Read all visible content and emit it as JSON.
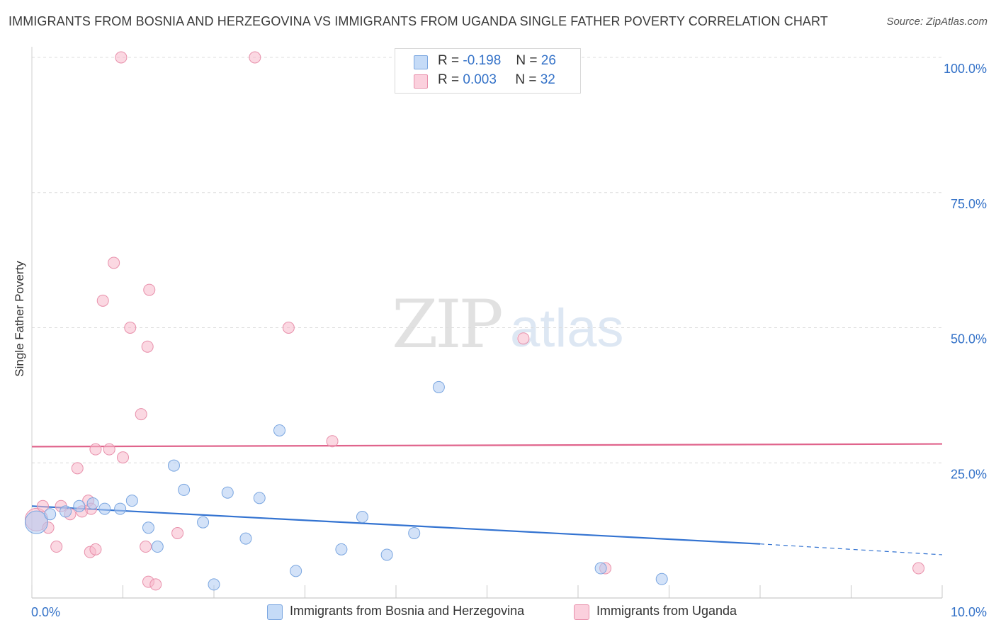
{
  "title": "IMMIGRANTS FROM BOSNIA AND HERZEGOVINA VS IMMIGRANTS FROM UGANDA SINGLE FATHER POVERTY CORRELATION CHART",
  "source": "Source: ZipAtlas.com",
  "watermark": {
    "zip": "ZIP",
    "atlas": "atlas"
  },
  "legend": {
    "rows": [
      {
        "r_label": "R =",
        "r_value": "-0.198",
        "n_label": "N =",
        "n_value": "26",
        "color": "#aecbf2"
      },
      {
        "r_label": "R =",
        "r_value": "0.003",
        "n_label": "N =",
        "n_value": "32",
        "color": "#f7b8cb"
      }
    ]
  },
  "chart_data": {
    "type": "scatter",
    "title": "IMMIGRANTS FROM BOSNIA AND HERZEGOVINA VS IMMIGRANTS FROM UGANDA SINGLE FATHER POVERTY CORRELATION CHART",
    "xlabel": "",
    "ylabel": "Single Father Poverty",
    "xlim": [
      0,
      10
    ],
    "ylim": [
      0,
      100
    ],
    "x_tick_labels": [
      "0.0%",
      "10.0%"
    ],
    "y_tick_labels": [
      "100.0%",
      "75.0%",
      "50.0%",
      "25.0%"
    ],
    "y_ticks": [
      100,
      75,
      50,
      25
    ],
    "series": [
      {
        "name": "Immigrants from Bosnia and Herzegovina",
        "color": "#aecbf2",
        "stroke": "#7aa6e0",
        "line_color": "#3373d1",
        "points": [
          {
            "x": 0.05,
            "y": 14.0,
            "big": true
          },
          {
            "x": 0.2,
            "y": 15.5
          },
          {
            "x": 0.37,
            "y": 16.0
          },
          {
            "x": 0.52,
            "y": 17.0
          },
          {
            "x": 0.67,
            "y": 17.5
          },
          {
            "x": 0.8,
            "y": 16.5
          },
          {
            "x": 0.97,
            "y": 16.5
          },
          {
            "x": 1.1,
            "y": 18.0
          },
          {
            "x": 1.28,
            "y": 13.0
          },
          {
            "x": 1.38,
            "y": 9.5
          },
          {
            "x": 1.56,
            "y": 24.5
          },
          {
            "x": 1.67,
            "y": 20.0
          },
          {
            "x": 1.88,
            "y": 14.0
          },
          {
            "x": 2.0,
            "y": 2.5
          },
          {
            "x": 2.15,
            "y": 19.5
          },
          {
            "x": 2.35,
            "y": 11.0
          },
          {
            "x": 2.5,
            "y": 18.5
          },
          {
            "x": 2.72,
            "y": 31.0
          },
          {
            "x": 2.9,
            "y": 5.0
          },
          {
            "x": 3.4,
            "y": 9.0
          },
          {
            "x": 3.63,
            "y": 15.0
          },
          {
            "x": 3.9,
            "y": 8.0
          },
          {
            "x": 4.2,
            "y": 12.0
          },
          {
            "x": 4.47,
            "y": 39.0
          },
          {
            "x": 6.25,
            "y": 5.5
          },
          {
            "x": 6.92,
            "y": 3.5
          }
        ],
        "trend": {
          "x0": 0.0,
          "y0": 17.0,
          "x1": 8.0,
          "y1": 10.0,
          "dash_x1": 10.0,
          "dash_y1": 8.0
        }
      },
      {
        "name": "Immigrants from Uganda",
        "color": "#f7b8cb",
        "stroke": "#e890ab",
        "line_color": "#e0648c",
        "points": [
          {
            "x": 0.05,
            "y": 14.5,
            "big": true
          },
          {
            "x": 0.12,
            "y": 17.0
          },
          {
            "x": 0.18,
            "y": 13.0
          },
          {
            "x": 0.27,
            "y": 9.5
          },
          {
            "x": 0.32,
            "y": 17.0
          },
          {
            "x": 0.42,
            "y": 15.5
          },
          {
            "x": 0.5,
            "y": 24.0
          },
          {
            "x": 0.55,
            "y": 16.0
          },
          {
            "x": 0.62,
            "y": 18.0
          },
          {
            "x": 0.65,
            "y": 16.5
          },
          {
            "x": 0.64,
            "y": 8.5
          },
          {
            "x": 0.7,
            "y": 9.0
          },
          {
            "x": 0.7,
            "y": 27.5
          },
          {
            "x": 0.78,
            "y": 55.0
          },
          {
            "x": 0.85,
            "y": 27.5
          },
          {
            "x": 0.9,
            "y": 62.0
          },
          {
            "x": 0.98,
            "y": 100.0
          },
          {
            "x": 1.0,
            "y": 26.0
          },
          {
            "x": 1.08,
            "y": 50.0
          },
          {
            "x": 1.2,
            "y": 34.0
          },
          {
            "x": 1.25,
            "y": 9.5
          },
          {
            "x": 1.28,
            "y": 3.0
          },
          {
            "x": 1.27,
            "y": 46.5
          },
          {
            "x": 1.29,
            "y": 57.0
          },
          {
            "x": 1.36,
            "y": 2.5
          },
          {
            "x": 1.6,
            "y": 12.0
          },
          {
            "x": 2.45,
            "y": 100.0
          },
          {
            "x": 2.82,
            "y": 50.0
          },
          {
            "x": 3.3,
            "y": 29.0
          },
          {
            "x": 5.4,
            "y": 48.0
          },
          {
            "x": 6.3,
            "y": 5.5
          },
          {
            "x": 9.74,
            "y": 5.5
          }
        ],
        "trend": {
          "x0": 0.0,
          "y0": 28.0,
          "x1": 10.0,
          "y1": 28.5
        }
      }
    ],
    "legend_position": "top-center",
    "grid": true
  }
}
